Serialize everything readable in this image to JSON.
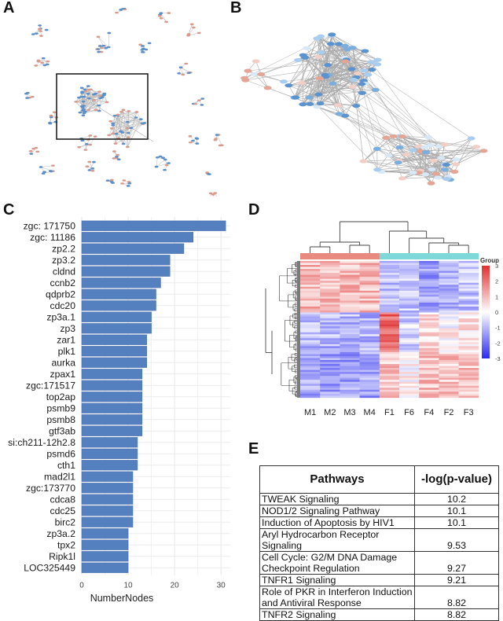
{
  "panels": {
    "A": {
      "letter": "A",
      "description": "Full protein interaction network; boxed region magnified in B"
    },
    "B": {
      "letter": "B",
      "description": "Magnified hub region of the network"
    },
    "C": {
      "letter": "C"
    },
    "D": {
      "letter": "D"
    },
    "E": {
      "letter": "E"
    }
  },
  "colors": {
    "bar": "#5580c0",
    "up_node": "#d99a8c",
    "down_node": "#5c8fc8",
    "light_node": "#bcdcf4",
    "group_male": "#e88a80",
    "group_female": "#7fd8d8",
    "heat_high": "#e03030",
    "heat_mid": "#ffffff",
    "heat_low": "#2a2af0"
  },
  "chart_data": [
    {
      "type": "bar",
      "orientation": "horizontal",
      "panel": "C",
      "title": "",
      "xlabel": "NumberNodes",
      "ylabel": "",
      "xlim": [
        0,
        32
      ],
      "xticks": [
        0,
        10,
        20,
        30
      ],
      "grid": true,
      "categories": [
        "zgc: 171750",
        "zgc: 11186",
        "zp2.2",
        "zp3.2",
        "cldnd",
        "ccnb2",
        "qdprb2",
        "cdc20",
        "zp3a.1",
        "zp3",
        "zar1",
        "plk1",
        "aurka",
        "zpax1",
        "zgc:171517",
        "top2ap",
        "psmb9",
        "psmb8",
        "gtf3ab",
        "si:ch211-12h2.8",
        "psmd6",
        "cth1",
        "mad2l1",
        "zgc:173770",
        "cdca8",
        "cdc25",
        "birc2",
        "zp3a.2",
        "tpx2",
        "Ripk1l",
        "LOC325449"
      ],
      "values": [
        31,
        24,
        22,
        19,
        19,
        17,
        16,
        16,
        15,
        15,
        14,
        14,
        14,
        13,
        13,
        13,
        13,
        13,
        13,
        12,
        12,
        12,
        11,
        11,
        11,
        11,
        11,
        10,
        10,
        10,
        10
      ]
    },
    {
      "type": "heatmap",
      "panel": "D",
      "columns": [
        "M1",
        "M2",
        "M3",
        "M4",
        "F1",
        "F6",
        "F4",
        "F2",
        "F3"
      ],
      "column_groups": [
        "male",
        "male",
        "male",
        "male",
        "female",
        "female",
        "female",
        "female",
        "female"
      ],
      "legend_title": "Group",
      "colorbar_ticks": [
        3,
        2,
        1,
        0,
        -1,
        -2,
        -3
      ],
      "colorbar_range": [
        -3,
        3
      ],
      "row_clusters": [
        {
          "name": "cluster-1",
          "approx_rows": 26,
          "male_mean": 1.0,
          "female_means": [
            -1.0,
            -0.8,
            -1.3,
            -1.1,
            -0.8
          ]
        },
        {
          "name": "cluster-2",
          "approx_rows": 20,
          "male_mean": -1.0,
          "female_means": [
            2.2,
            -0.6,
            0.6,
            0.1,
            0.4
          ]
        },
        {
          "name": "cluster-3",
          "approx_rows": 23,
          "male_mean": -1.3,
          "female_means": [
            0.8,
            0.1,
            0.9,
            0.8,
            0.8
          ]
        }
      ]
    },
    {
      "type": "table",
      "panel": "E",
      "headers": [
        "Pathways",
        "-log(p-value)"
      ],
      "rows": [
        [
          "TWEAK Signaling",
          "10.2"
        ],
        [
          "NOD1/2 Signaling Pathway",
          "10.1"
        ],
        [
          "Induction of Apoptosis by HIV1",
          "10.1"
        ],
        [
          "Aryl Hydrocarbon Receptor Signaling",
          "9.53"
        ],
        [
          "Cell Cycle: G2/M DNA Damage Checkpoint Regulation",
          "9.27"
        ],
        [
          "TNFR1 Signaling",
          "9.21"
        ],
        [
          "Role of PKR in Interferon Induction and Antiviral Response",
          "8.82"
        ],
        [
          "TNFR2 Signaling",
          "8.82"
        ]
      ]
    }
  ],
  "table": {
    "header_pathways": "Pathways",
    "header_value": "-log(p-value)",
    "rows": [
      {
        "l1": "TWEAK Signaling",
        "l2": "",
        "value": "10.2"
      },
      {
        "l1": "NOD1/2 Signaling Pathway",
        "l2": "",
        "value": "10.1"
      },
      {
        "l1": "Induction of Apoptosis by HIV1",
        "l2": "",
        "value": "10.1"
      },
      {
        "l1": "Aryl Hydrocarbon Receptor",
        "l2": "Signaling",
        "value": "9.53"
      },
      {
        "l1": "Cell Cycle: G2/M DNA Damage",
        "l2": "Checkpoint Regulation",
        "value": "9.27"
      },
      {
        "l1": "TNFR1 Signaling",
        "l2": "",
        "value": "9.21"
      },
      {
        "l1": "Role of PKR in Interferon Induction",
        "l2": "and Antiviral Response",
        "value": "8.82"
      },
      {
        "l1": "TNFR2 Signaling",
        "l2": "",
        "value": "8.82"
      }
    ]
  }
}
